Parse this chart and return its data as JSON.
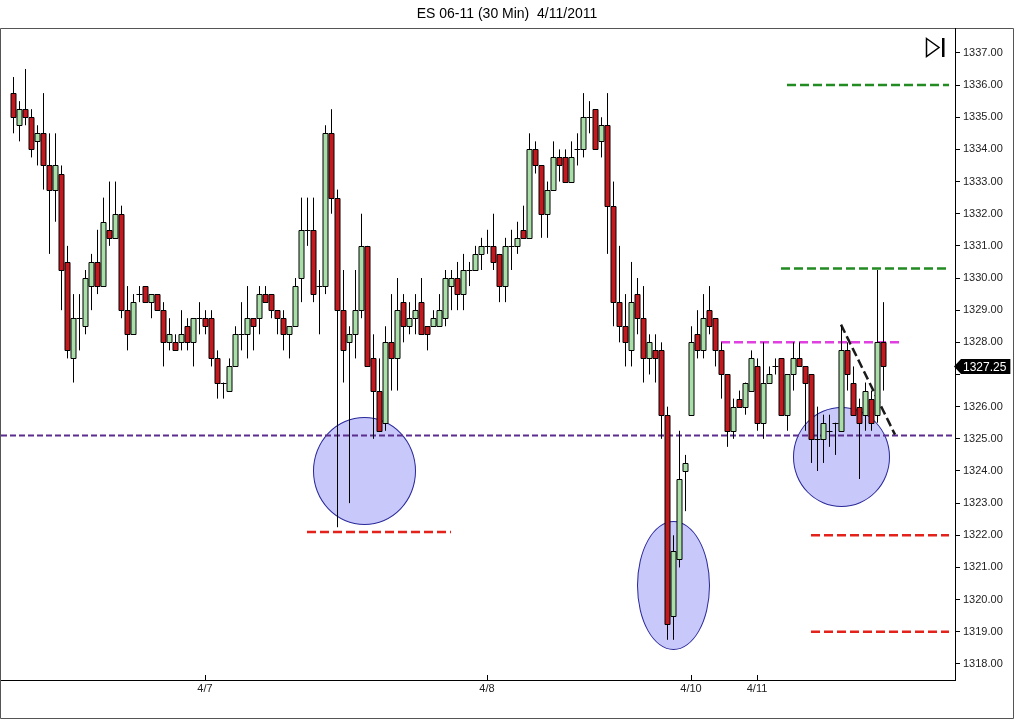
{
  "chart_data": {
    "type": "candlestick",
    "title": "ES 06-11 (30 Min)  4/11/2011",
    "categories": [
      null,
      null,
      null,
      null,
      null,
      null,
      null,
      null,
      null,
      null,
      null,
      null,
      null,
      null,
      null,
      null,
      null,
      null,
      null,
      null,
      null,
      null,
      null,
      null,
      null,
      null,
      null,
      null,
      null,
      null,
      null,
      null,
      "4/7",
      null,
      null,
      null,
      null,
      null,
      null,
      null,
      null,
      null,
      null,
      null,
      null,
      null,
      null,
      null,
      null,
      null,
      null,
      null,
      null,
      null,
      null,
      null,
      null,
      null,
      null,
      null,
      null,
      null,
      null,
      null,
      null,
      null,
      null,
      null,
      null,
      null,
      null,
      null,
      null,
      null,
      null,
      null,
      null,
      null,
      null,
      "4/8",
      null,
      null,
      null,
      null,
      null,
      null,
      null,
      null,
      null,
      null,
      null,
      null,
      null,
      null,
      null,
      null,
      null,
      null,
      null,
      null,
      null,
      null,
      null,
      null,
      null,
      null,
      null,
      null,
      null,
      null,
      null,
      null,
      null,
      "4/10",
      null,
      null,
      null,
      null,
      null,
      null,
      null,
      null,
      null,
      null,
      "4/11",
      null,
      null,
      null,
      null,
      null,
      null,
      null,
      null,
      null,
      null,
      null,
      null,
      null,
      null,
      null,
      null,
      null,
      null,
      null,
      null,
      null,
      null,
      null,
      null,
      null,
      null,
      null,
      null,
      null,
      null,
      null,
      null,
      null
    ],
    "ohlc": [
      [
        1335.75,
        1336.25,
        1334.5,
        1335.0
      ],
      [
        1334.75,
        1335.5,
        1334.25,
        1335.25
      ],
      [
        1335.25,
        1336.5,
        1334.75,
        1335.0
      ],
      [
        1335.0,
        1335.25,
        1333.75,
        1334.0
      ],
      [
        1334.25,
        1334.75,
        1333.5,
        1334.5
      ],
      [
        1334.5,
        1335.75,
        1332.75,
        1333.5
      ],
      [
        1333.5,
        1334.5,
        1330.75,
        1332.75
      ],
      [
        1332.75,
        1334.5,
        1331.75,
        1333.5
      ],
      [
        1333.25,
        1333.5,
        1329.0,
        1330.25
      ],
      [
        1330.5,
        1331.0,
        1327.5,
        1327.75
      ],
      [
        1327.5,
        1329.5,
        1326.75,
        1328.75
      ],
      [
        1328.75,
        1329.5,
        1327.75,
        1328.75
      ],
      [
        1328.5,
        1330.25,
        1328.25,
        1330.0
      ],
      [
        1329.75,
        1330.75,
        1329.0,
        1330.5
      ],
      [
        1330.5,
        1331.5,
        1329.5,
        1329.75
      ],
      [
        1329.75,
        1332.5,
        1329.75,
        1331.75
      ],
      [
        1331.5,
        1333.0,
        1331.0,
        1331.25
      ],
      [
        1331.25,
        1333.0,
        1331.25,
        1332.0
      ],
      [
        1332.0,
        1332.25,
        1328.75,
        1329.0
      ],
      [
        1329.0,
        1329.75,
        1327.75,
        1328.25
      ],
      [
        1328.25,
        1329.5,
        1328.25,
        1329.25
      ],
      [
        1329.5,
        1329.75,
        1329.25,
        1329.5
      ],
      [
        1329.75,
        1329.75,
        1329.25,
        1329.25
      ],
      [
        1329.25,
        1329.5,
        1328.75,
        1329.5
      ],
      [
        1329.5,
        1329.5,
        1329.0,
        1329.0
      ],
      [
        1329.0,
        1329.25,
        1327.25,
        1328.0
      ],
      [
        1328.0,
        1328.75,
        1327.75,
        1328.25
      ],
      [
        1328.0,
        1328.25,
        1327.75,
        1327.75
      ],
      [
        1328.0,
        1329.0,
        1327.75,
        1328.25
      ],
      [
        1328.5,
        1328.75,
        1327.75,
        1328.0
      ],
      [
        1328.0,
        1328.75,
        1327.25,
        1328.75
      ],
      [
        1328.75,
        1329.25,
        1328.25,
        1328.75
      ],
      [
        1328.75,
        1329.0,
        1328.25,
        1328.5
      ],
      [
        1328.75,
        1329.0,
        1327.25,
        1327.5
      ],
      [
        1327.5,
        1327.75,
        1326.25,
        1326.75
      ],
      [
        1326.75,
        1326.75,
        1326.25,
        1326.75
      ],
      [
        1326.5,
        1327.5,
        1326.5,
        1327.25
      ],
      [
        1327.25,
        1328.5,
        1327.25,
        1328.25
      ],
      [
        1328.25,
        1329.25,
        1327.75,
        1328.25
      ],
      [
        1328.25,
        1329.75,
        1327.5,
        1328.75
      ],
      [
        1328.75,
        1328.75,
        1327.75,
        1328.5
      ],
      [
        1328.75,
        1329.75,
        1328.25,
        1329.5
      ],
      [
        1329.5,
        1329.75,
        1329.25,
        1329.25
      ],
      [
        1329.5,
        1329.5,
        1328.75,
        1329.0
      ],
      [
        1329.0,
        1329.0,
        1328.25,
        1328.75
      ],
      [
        1328.75,
        1329.0,
        1327.75,
        1328.25
      ],
      [
        1328.25,
        1328.5,
        1327.5,
        1328.5
      ],
      [
        1328.5,
        1330.0,
        1328.5,
        1329.75
      ],
      [
        1330.0,
        1332.5,
        1329.25,
        1331.5
      ],
      [
        1331.5,
        1332.5,
        1331.0,
        1331.5
      ],
      [
        1331.5,
        1332.5,
        1329.25,
        1329.5
      ],
      [
        1329.75,
        1330.25,
        1328.25,
        1329.75
      ],
      [
        1329.75,
        1334.75,
        1329.5,
        1334.5
      ],
      [
        1334.5,
        1335.25,
        1332.0,
        1332.5
      ],
      [
        1332.5,
        1332.75,
        1322.25,
        1329.0
      ],
      [
        1329.0,
        1330.25,
        1326.75,
        1327.75
      ],
      [
        1328.0,
        1328.5,
        1323.0,
        1328.25
      ],
      [
        1328.25,
        1330.25,
        1327.5,
        1329.0
      ],
      [
        1329.0,
        1332.0,
        1328.75,
        1331.0
      ],
      [
        1331.0,
        1331.0,
        1327.25,
        1327.25
      ],
      [
        1327.5,
        1328.25,
        1325.0,
        1326.5
      ],
      [
        1326.5,
        1327.5,
        1325.25,
        1325.25
      ],
      [
        1325.5,
        1328.5,
        1325.25,
        1328.0
      ],
      [
        1328.0,
        1329.5,
        1326.5,
        1327.5
      ],
      [
        1327.5,
        1330.0,
        1326.5,
        1329.0
      ],
      [
        1329.25,
        1329.5,
        1328.0,
        1328.5
      ],
      [
        1328.5,
        1329.25,
        1328.25,
        1328.75
      ],
      [
        1328.75,
        1329.5,
        1328.25,
        1329.0
      ],
      [
        1329.25,
        1330.0,
        1328.25,
        1328.25
      ],
      [
        1328.5,
        1328.5,
        1327.75,
        1328.25
      ],
      [
        1328.5,
        1329.0,
        1328.5,
        1328.75
      ],
      [
        1328.5,
        1329.5,
        1328.5,
        1329.0
      ],
      [
        1328.75,
        1330.25,
        1328.5,
        1330.0
      ],
      [
        1329.75,
        1330.25,
        1329.0,
        1330.0
      ],
      [
        1330.0,
        1330.5,
        1329.0,
        1329.5
      ],
      [
        1329.5,
        1330.75,
        1329.0,
        1330.25
      ],
      [
        1330.25,
        1330.5,
        1329.75,
        1330.25
      ],
      [
        1330.25,
        1331.0,
        1330.25,
        1330.75
      ],
      [
        1330.75,
        1331.25,
        1330.25,
        1331.0
      ],
      [
        1331.0,
        1331.5,
        1330.75,
        1331.0
      ],
      [
        1331.0,
        1332.0,
        1330.25,
        1330.5
      ],
      [
        1330.75,
        1330.75,
        1329.25,
        1329.75
      ],
      [
        1329.75,
        1331.25,
        1329.25,
        1331.0
      ],
      [
        1331.0,
        1331.5,
        1330.25,
        1331.0
      ],
      [
        1331.0,
        1331.75,
        1330.75,
        1331.25
      ],
      [
        1331.5,
        1332.25,
        1331.25,
        1331.25
      ],
      [
        1331.25,
        1334.5,
        1331.25,
        1334.0
      ],
      [
        1334.0,
        1334.25,
        1333.25,
        1333.5
      ],
      [
        1333.5,
        1333.5,
        1331.25,
        1332.0
      ],
      [
        1332.0,
        1333.0,
        1331.25,
        1332.75
      ],
      [
        1332.75,
        1334.25,
        1332.75,
        1333.75
      ],
      [
        1333.75,
        1334.0,
        1333.0,
        1333.5
      ],
      [
        1333.75,
        1334.0,
        1333.0,
        1333.0
      ],
      [
        1333.0,
        1334.25,
        1333.0,
        1333.75
      ],
      [
        1334.0,
        1334.5,
        1333.5,
        1334.0
      ],
      [
        1334.0,
        1335.75,
        1333.75,
        1335.0
      ],
      [
        1335.0,
        1335.5,
        1334.5,
        1335.0
      ],
      [
        1335.25,
        1335.25,
        1334.0,
        1334.0
      ],
      [
        1334.25,
        1335.0,
        1333.75,
        1334.75
      ],
      [
        1334.75,
        1335.75,
        1330.75,
        1332.25
      ],
      [
        1332.25,
        1333.0,
        1328.5,
        1329.25
      ],
      [
        1329.25,
        1331.0,
        1328.0,
        1328.5
      ],
      [
        1328.5,
        1329.5,
        1327.25,
        1328.0
      ],
      [
        1327.75,
        1330.5,
        1327.25,
        1329.25
      ],
      [
        1329.5,
        1330.0,
        1328.25,
        1328.75
      ],
      [
        1328.75,
        1329.75,
        1326.75,
        1327.5
      ],
      [
        1327.5,
        1328.25,
        1327.0,
        1328.0
      ],
      [
        1327.75,
        1328.25,
        1326.75,
        1327.5
      ],
      [
        1327.75,
        1328.0,
        1325.0,
        1325.75
      ],
      [
        1325.75,
        1326.0,
        1318.75,
        1319.25
      ],
      [
        1319.5,
        1322.0,
        1318.75,
        1321.5
      ],
      [
        1321.25,
        1325.25,
        1321.0,
        1323.75
      ],
      [
        1324.0,
        1324.5,
        1322.75,
        1324.25
      ],
      [
        1325.75,
        1328.5,
        1325.75,
        1328.0
      ],
      [
        1328.25,
        1329.0,
        1327.5,
        1327.75
      ],
      [
        1327.75,
        1329.5,
        1327.5,
        1328.75
      ],
      [
        1329.0,
        1329.75,
        1328.25,
        1328.5
      ],
      [
        1328.75,
        1328.75,
        1327.25,
        1327.75
      ],
      [
        1327.75,
        1328.0,
        1326.25,
        1327.0
      ],
      [
        1327.0,
        1327.0,
        1324.75,
        1325.25
      ],
      [
        1325.25,
        1326.25,
        1325.0,
        1326.0
      ],
      [
        1326.25,
        1326.5,
        1326.0,
        1326.0
      ],
      [
        1326.0,
        1326.75,
        1325.75,
        1326.75
      ],
      [
        1326.5,
        1327.75,
        1326.5,
        1327.5
      ],
      [
        1327.25,
        1327.5,
        1325.25,
        1325.5
      ],
      [
        1325.5,
        1328.0,
        1325.0,
        1326.75
      ],
      [
        1326.75,
        1327.25,
        1326.75,
        1327.0
      ],
      [
        1327.25,
        1327.5,
        1327.0,
        1327.25
      ],
      [
        1327.5,
        1327.5,
        1325.75,
        1325.75
      ],
      [
        1325.75,
        1327.0,
        1325.25,
        1327.0
      ],
      [
        1327.0,
        1328.0,
        1326.5,
        1327.5
      ],
      [
        1327.5,
        1328.0,
        1327.25,
        1327.25
      ],
      [
        1327.25,
        1327.25,
        1325.25,
        1326.75
      ],
      [
        1327.0,
        1327.0,
        1324.25,
        1325.0
      ],
      [
        1325.0,
        1326.0,
        1324.0,
        1325.0
      ],
      [
        1325.0,
        1325.75,
        1324.25,
        1325.5
      ],
      [
        1325.25,
        1325.75,
        1324.75,
        1325.25
      ],
      [
        1325.5,
        1325.5,
        1324.5,
        1325.5
      ],
      [
        1325.25,
        1328.5,
        1325.25,
        1327.75
      ],
      [
        1327.75,
        1328.0,
        1326.5,
        1327.0
      ],
      [
        1326.75,
        1327.25,
        1325.75,
        1325.75
      ],
      [
        1326.0,
        1326.25,
        1323.75,
        1325.5
      ],
      [
        1325.75,
        1326.75,
        1325.25,
        1326.5
      ],
      [
        1326.25,
        1326.5,
        1325.25,
        1325.5
      ],
      [
        1325.75,
        1330.25,
        1325.5,
        1328.0
      ],
      [
        1328.0,
        1329.25,
        1326.5,
        1327.25
      ],
      null,
      null,
      null,
      null,
      null,
      null,
      null,
      null,
      null,
      null,
      null,
      null
    ],
    "colors": [
      "#c41a1f",
      "#a9dea9",
      "#c41a1f",
      "#c41a1f",
      "#a9dea9",
      "#c41a1f",
      "#c41a1f",
      "#a9dea9",
      "#c41a1f",
      "#c41a1f",
      "#a9dea9",
      "#000000",
      "#a9dea9",
      "#a9dea9",
      "#c41a1f",
      "#a9dea9",
      "#c41a1f",
      "#a9dea9",
      "#c41a1f",
      "#c41a1f",
      "#a9dea9",
      "#000000",
      "#c41a1f",
      "#a9dea9",
      "#c41a1f",
      "#c41a1f",
      "#a9dea9",
      "#c41a1f",
      "#a9dea9",
      "#c41a1f",
      "#a9dea9",
      "#000000",
      "#c41a1f",
      "#c41a1f",
      "#c41a1f",
      "#000000",
      "#a9dea9",
      "#a9dea9",
      "#000000",
      "#a9dea9",
      "#c41a1f",
      "#a9dea9",
      "#c41a1f",
      "#c41a1f",
      "#c41a1f",
      "#c41a1f",
      "#a9dea9",
      "#a9dea9",
      "#a9dea9",
      "#000000",
      "#c41a1f",
      "#000000",
      "#a9dea9",
      "#c41a1f",
      "#c41a1f",
      "#c41a1f",
      "#a9dea9",
      "#a9dea9",
      "#a9dea9",
      "#c41a1f",
      "#c41a1f",
      "#c41a1f",
      "#a9dea9",
      "#c41a1f",
      "#a9dea9",
      "#c41a1f",
      "#a9dea9",
      "#a9dea9",
      "#c41a1f",
      "#c41a1f",
      "#a9dea9",
      "#a9dea9",
      "#a9dea9",
      "#a9dea9",
      "#c41a1f",
      "#a9dea9",
      "#000000",
      "#a9dea9",
      "#a9dea9",
      "#000000",
      "#c41a1f",
      "#c41a1f",
      "#a9dea9",
      "#000000",
      "#a9dea9",
      "#c41a1f",
      "#a9dea9",
      "#c41a1f",
      "#c41a1f",
      "#a9dea9",
      "#a9dea9",
      "#c41a1f",
      "#c41a1f",
      "#a9dea9",
      "#000000",
      "#a9dea9",
      "#000000",
      "#c41a1f",
      "#a9dea9",
      "#c41a1f",
      "#c41a1f",
      "#c41a1f",
      "#c41a1f",
      "#a9dea9",
      "#c41a1f",
      "#c41a1f",
      "#a9dea9",
      "#c41a1f",
      "#c41a1f",
      "#c41a1f",
      "#a9dea9",
      "#a9dea9",
      "#a9dea9",
      "#a9dea9",
      "#c41a1f",
      "#a9dea9",
      "#c41a1f",
      "#c41a1f",
      "#c41a1f",
      "#c41a1f",
      "#a9dea9",
      "#c41a1f",
      "#a9dea9",
      "#a9dea9",
      "#c41a1f",
      "#a9dea9",
      "#a9dea9",
      "#000000",
      "#c41a1f",
      "#a9dea9",
      "#a9dea9",
      "#c41a1f",
      "#c41a1f",
      "#c41a1f",
      "#000000",
      "#a9dea9",
      "#000000",
      "#000000",
      "#a9dea9",
      "#c41a1f",
      "#c41a1f",
      "#c41a1f",
      "#a9dea9",
      "#c41a1f",
      "#a9dea9",
      "#c41a1f",
      null,
      null,
      null,
      null,
      null,
      null,
      null,
      null,
      null,
      null,
      null,
      null
    ],
    "series": [
      {
        "type": "line",
        "color": "#228b22",
        "line_style": "dashed",
        "values": [
          null,
          null,
          null,
          null,
          null,
          null,
          null,
          null,
          null,
          null,
          null,
          null,
          null,
          null,
          null,
          null,
          null,
          null,
          null,
          null,
          null,
          null,
          null,
          null,
          null,
          null,
          null,
          null,
          null,
          null,
          null,
          null,
          null,
          null,
          null,
          null,
          null,
          null,
          null,
          null,
          null,
          null,
          null,
          null,
          null,
          null,
          null,
          null,
          null,
          null,
          null,
          null,
          null,
          null,
          null,
          null,
          null,
          null,
          null,
          null,
          null,
          null,
          null,
          null,
          null,
          null,
          null,
          null,
          null,
          null,
          null,
          null,
          null,
          null,
          null,
          null,
          null,
          null,
          null,
          null,
          null,
          null,
          null,
          null,
          null,
          null,
          null,
          null,
          null,
          null,
          null,
          null,
          null,
          null,
          null,
          null,
          null,
          null,
          null,
          null,
          null,
          null,
          null,
          null,
          null,
          null,
          null,
          null,
          null,
          null,
          null,
          null,
          null,
          null,
          null,
          null,
          null,
          null,
          null,
          null,
          null,
          null,
          null,
          null,
          null,
          null,
          null,
          null,
          null,
          1336,
          1336,
          1336,
          1336,
          1336,
          1336,
          1336,
          1336,
          1336,
          1336,
          1336,
          1336,
          1336,
          1336,
          1336,
          1336,
          1336,
          1336,
          1336,
          1336,
          1336,
          1336,
          1336,
          1336,
          1336,
          1336,
          1336,
          1336,
          null
        ]
      },
      {
        "type": "line",
        "color": "#228b22",
        "line_style": "dashed",
        "values": [
          null,
          null,
          null,
          null,
          null,
          null,
          null,
          null,
          null,
          null,
          null,
          null,
          null,
          null,
          null,
          null,
          null,
          null,
          null,
          null,
          null,
          null,
          null,
          null,
          null,
          null,
          null,
          null,
          null,
          null,
          null,
          null,
          null,
          null,
          null,
          null,
          null,
          null,
          null,
          null,
          null,
          null,
          null,
          null,
          null,
          null,
          null,
          null,
          null,
          null,
          null,
          null,
          null,
          null,
          null,
          null,
          null,
          null,
          null,
          null,
          null,
          null,
          null,
          null,
          null,
          null,
          null,
          null,
          null,
          null,
          null,
          null,
          null,
          null,
          null,
          null,
          null,
          null,
          null,
          null,
          null,
          null,
          null,
          null,
          null,
          null,
          null,
          null,
          null,
          null,
          null,
          null,
          null,
          null,
          null,
          null,
          null,
          null,
          null,
          null,
          null,
          null,
          null,
          null,
          null,
          null,
          null,
          null,
          null,
          null,
          null,
          null,
          null,
          null,
          null,
          null,
          null,
          null,
          null,
          null,
          null,
          null,
          null,
          null,
          null,
          null,
          null,
          null,
          1330.3,
          1330.3,
          1330.3,
          1330.3,
          1330.3,
          1330.3,
          1330.3,
          1330.3,
          1330.3,
          1330.3,
          1330.3,
          1330.3,
          1330.3,
          1330.3,
          1330.3,
          1330.3,
          1330.3,
          1330.3,
          1330.3,
          1330.3,
          1330.3,
          1330.3,
          1330.3,
          1330.3,
          1330.3,
          1330.3,
          1330.3,
          1330.3,
          1330.3,
          null
        ]
      },
      {
        "type": "line",
        "color": "#e3221b",
        "line_style": "dashed",
        "values": [
          null,
          null,
          null,
          null,
          null,
          null,
          null,
          null,
          null,
          null,
          null,
          null,
          null,
          null,
          null,
          null,
          null,
          null,
          null,
          null,
          null,
          null,
          null,
          null,
          null,
          null,
          null,
          null,
          null,
          null,
          null,
          null,
          null,
          null,
          null,
          null,
          null,
          null,
          null,
          null,
          null,
          null,
          null,
          null,
          null,
          null,
          null,
          null,
          null,
          1322.1,
          1322.1,
          1322.1,
          1322.1,
          1322.1,
          1322.1,
          1322.1,
          1322.1,
          1322.1,
          1322.1,
          1322.1,
          1322.1,
          1322.1,
          1322.1,
          1322.1,
          1322.1,
          1322.1,
          1322.1,
          1322.1,
          1322.1,
          1322.1,
          1322.1,
          1322.1,
          1322.1,
          1322.1,
          null,
          null,
          null,
          null,
          null,
          null,
          null,
          null,
          null,
          null,
          null,
          null,
          null,
          null,
          null,
          null,
          null,
          null,
          null,
          null,
          null,
          null,
          null,
          null,
          null,
          null,
          null,
          null,
          null,
          null,
          null,
          null,
          null,
          null,
          null,
          null,
          null,
          null,
          null,
          null,
          null,
          null,
          null,
          null,
          null,
          null,
          null,
          null,
          null,
          null,
          null,
          null,
          null,
          null,
          null,
          null,
          null,
          null,
          null,
          null,
          null,
          null,
          null,
          null,
          null,
          null,
          null,
          null,
          null,
          null,
          null,
          null,
          null,
          null,
          null,
          null,
          null,
          null,
          null,
          null,
          null,
          null,
          null,
          null
        ]
      },
      {
        "type": "line",
        "color": "#e3221b",
        "line_style": "dashed",
        "values": [
          null,
          null,
          null,
          null,
          null,
          null,
          null,
          null,
          null,
          null,
          null,
          null,
          null,
          null,
          null,
          null,
          null,
          null,
          null,
          null,
          null,
          null,
          null,
          null,
          null,
          null,
          null,
          null,
          null,
          null,
          null,
          null,
          null,
          null,
          null,
          null,
          null,
          null,
          null,
          null,
          null,
          null,
          null,
          null,
          null,
          null,
          null,
          null,
          null,
          null,
          null,
          null,
          null,
          null,
          null,
          null,
          null,
          null,
          null,
          null,
          null,
          null,
          null,
          null,
          null,
          null,
          null,
          null,
          null,
          null,
          null,
          null,
          null,
          null,
          null,
          null,
          null,
          null,
          null,
          null,
          null,
          null,
          null,
          null,
          null,
          null,
          null,
          null,
          null,
          null,
          null,
          null,
          null,
          null,
          null,
          null,
          null,
          null,
          null,
          null,
          null,
          null,
          null,
          null,
          null,
          null,
          null,
          null,
          null,
          null,
          null,
          null,
          null,
          null,
          null,
          null,
          null,
          null,
          null,
          null,
          null,
          null,
          null,
          null,
          null,
          null,
          null,
          null,
          null,
          null,
          null,
          null,
          null,
          1322,
          1322,
          1322,
          1322,
          1322,
          1322,
          1322,
          1322,
          1322,
          1322,
          1322,
          1322,
          1322,
          1322,
          1322,
          1322,
          1322,
          1322,
          1322,
          1322,
          1322,
          1322,
          1322,
          1322,
          null
        ]
      },
      {
        "type": "line",
        "color": "#e3221b",
        "line_style": "dashed",
        "values": [
          null,
          null,
          null,
          null,
          null,
          null,
          null,
          null,
          null,
          null,
          null,
          null,
          null,
          null,
          null,
          null,
          null,
          null,
          null,
          null,
          null,
          null,
          null,
          null,
          null,
          null,
          null,
          null,
          null,
          null,
          null,
          null,
          null,
          null,
          null,
          null,
          null,
          null,
          null,
          null,
          null,
          null,
          null,
          null,
          null,
          null,
          null,
          null,
          null,
          null,
          null,
          null,
          null,
          null,
          null,
          null,
          null,
          null,
          null,
          null,
          null,
          null,
          null,
          null,
          null,
          null,
          null,
          null,
          null,
          null,
          null,
          null,
          null,
          null,
          null,
          null,
          null,
          null,
          null,
          null,
          null,
          null,
          null,
          null,
          null,
          null,
          null,
          null,
          null,
          null,
          null,
          null,
          null,
          null,
          null,
          null,
          null,
          null,
          null,
          null,
          null,
          null,
          null,
          null,
          null,
          null,
          null,
          null,
          null,
          null,
          null,
          null,
          null,
          null,
          null,
          null,
          null,
          null,
          null,
          null,
          null,
          null,
          null,
          null,
          null,
          null,
          null,
          null,
          null,
          null,
          null,
          null,
          null,
          1319,
          1319,
          1319,
          1319,
          1319,
          1319,
          1319,
          1319,
          1319,
          1319,
          1319,
          1319,
          1319,
          1319,
          1319,
          1319,
          1319,
          1319,
          1319,
          1319,
          1319,
          1319,
          1319,
          1319,
          null
        ]
      },
      {
        "type": "line",
        "color": "#e040e0",
        "line_style": "dashed",
        "values": [
          null,
          null,
          null,
          null,
          null,
          null,
          null,
          null,
          null,
          null,
          null,
          null,
          null,
          null,
          null,
          null,
          null,
          null,
          null,
          null,
          null,
          null,
          null,
          null,
          null,
          null,
          null,
          null,
          null,
          null,
          null,
          null,
          null,
          null,
          null,
          null,
          null,
          null,
          null,
          null,
          null,
          null,
          null,
          null,
          null,
          null,
          null,
          null,
          null,
          null,
          null,
          null,
          null,
          null,
          null,
          null,
          null,
          null,
          null,
          null,
          null,
          null,
          null,
          null,
          null,
          null,
          null,
          null,
          null,
          null,
          null,
          null,
          null,
          null,
          null,
          null,
          null,
          null,
          null,
          null,
          null,
          null,
          null,
          null,
          null,
          null,
          null,
          null,
          null,
          null,
          null,
          null,
          null,
          null,
          null,
          null,
          null,
          null,
          null,
          null,
          null,
          null,
          null,
          null,
          null,
          null,
          null,
          null,
          null,
          null,
          null,
          null,
          null,
          null,
          null,
          null,
          null,
          null,
          1328,
          1328,
          1328,
          1328,
          1328,
          1328,
          1328,
          1328,
          1328,
          1328,
          1328,
          1328,
          1328,
          1328,
          1328,
          1328,
          1328,
          1328,
          1328,
          1328,
          1328,
          1328,
          1328,
          1328,
          1328,
          1328,
          1328,
          1328,
          1328,
          1328,
          1328,
          null,
          null,
          null,
          null,
          null,
          null,
          null,
          null,
          null
        ]
      },
      {
        "type": "line",
        "color": "#1a1a1a",
        "line_style": "dashed",
        "values": [
          null,
          null,
          null,
          null,
          null,
          null,
          null,
          null,
          null,
          null,
          null,
          null,
          null,
          null,
          null,
          null,
          null,
          null,
          null,
          null,
          null,
          null,
          null,
          null,
          null,
          null,
          null,
          null,
          null,
          null,
          null,
          null,
          null,
          null,
          null,
          null,
          null,
          null,
          null,
          null,
          null,
          null,
          null,
          null,
          null,
          null,
          null,
          null,
          null,
          null,
          null,
          null,
          null,
          null,
          null,
          null,
          null,
          null,
          null,
          null,
          null,
          null,
          null,
          null,
          null,
          null,
          null,
          null,
          null,
          null,
          null,
          null,
          null,
          null,
          null,
          null,
          null,
          null,
          null,
          null,
          null,
          null,
          null,
          null,
          null,
          null,
          null,
          null,
          null,
          null,
          null,
          null,
          null,
          null,
          null,
          null,
          null,
          null,
          null,
          null,
          null,
          null,
          null,
          null,
          null,
          null,
          null,
          null,
          null,
          null,
          null,
          null,
          null,
          null,
          null,
          null,
          null,
          null,
          null,
          null,
          null,
          null,
          null,
          null,
          null,
          null,
          null,
          null,
          null,
          null,
          null,
          null,
          null,
          null,
          null,
          null,
          null,
          null,
          1328.55,
          1328.17,
          1327.79,
          1327.41,
          1327.03,
          1326.65,
          1326.27,
          1325.89,
          1325.51,
          1325.13,
          null,
          null,
          null,
          null,
          null,
          null,
          null,
          null,
          null,
          null
        ]
      }
    ],
    "ref_lines": [
      {
        "axis": "y",
        "value": 1325.1,
        "color": "#5b2d8e",
        "line_style": "dashed"
      }
    ],
    "annotations": [
      "1327.25"
    ],
    "ylim": [
      1317.5,
      1337.75
    ],
    "yticks": [
      {
        "value": 1318,
        "label": "1318.00"
      },
      {
        "value": 1319,
        "label": "1319.00"
      },
      {
        "value": 1320,
        "label": "1320.00"
      },
      {
        "value": 1321,
        "label": "1321.00"
      },
      {
        "value": 1322,
        "label": "1322.00"
      },
      {
        "value": 1323,
        "label": "1323.00"
      },
      {
        "value": 1324,
        "label": "1324.00"
      },
      {
        "value": 1325,
        "label": "1325.00"
      },
      {
        "value": 1326,
        "label": "1326.00"
      },
      {
        "value": 1327,
        "label": null
      },
      {
        "value": 1328,
        "label": "1328.00"
      },
      {
        "value": 1329,
        "label": "1329.00"
      },
      {
        "value": 1330,
        "label": "1330.00"
      },
      {
        "value": 1331,
        "label": "1331.00"
      },
      {
        "value": 1332,
        "label": "1332.00"
      },
      {
        "value": 1333,
        "label": "1333.00"
      },
      {
        "value": 1334,
        "label": "1334.00"
      },
      {
        "value": 1335,
        "label": "1335.00"
      },
      {
        "value": 1336,
        "label": "1336.00"
      },
      {
        "value": 1337,
        "label": "1337.00"
      }
    ]
  }
}
